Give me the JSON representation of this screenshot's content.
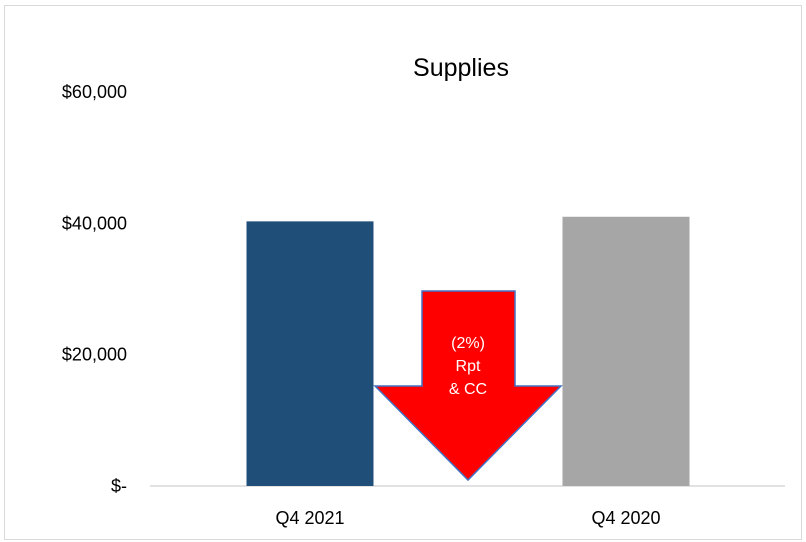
{
  "chart_data": {
    "type": "bar",
    "title": "Supplies",
    "categories": [
      "Q4 2021",
      "Q4 2020"
    ],
    "values": [
      40300,
      41000
    ],
    "ylim": [
      0,
      60000
    ],
    "yticks": [
      {
        "value": 0,
        "label": "$-"
      },
      {
        "value": 20000,
        "label": "$20,000"
      },
      {
        "value": 40000,
        "label": "$40,000"
      },
      {
        "value": 60000,
        "label": "$60,000"
      }
    ],
    "grid": false,
    "legend": "none",
    "bar_colors": [
      "#1f4e79",
      "#a6a6a6"
    ],
    "annotation": {
      "shape": "down-arrow",
      "color": "#ff0000",
      "border_color": "#4472c4",
      "lines": [
        "(2%)",
        "Rpt",
        "& CC"
      ]
    }
  }
}
